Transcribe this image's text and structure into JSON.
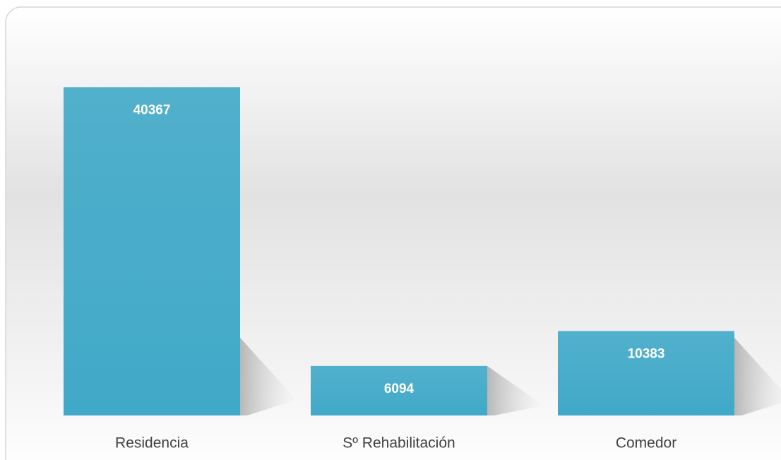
{
  "chart_data": {
    "type": "bar",
    "categories": [
      "Residencia",
      "Sº Rehabilitación",
      "Comedor"
    ],
    "values": [
      40367,
      6094,
      10383
    ],
    "color": "#40a9c8",
    "ylim": [
      0,
      45000
    ],
    "grid": false
  }
}
